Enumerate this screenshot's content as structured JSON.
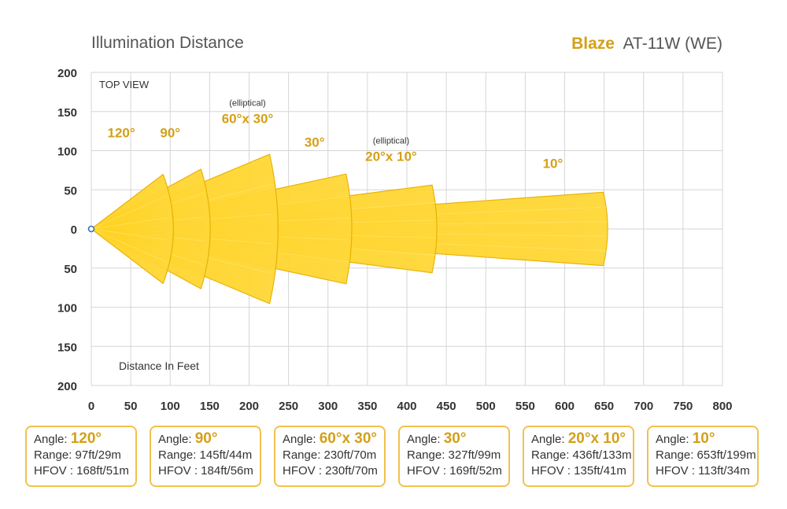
{
  "chart_data": {
    "type": "beam-pattern",
    "title": "Illumination Distance",
    "brand": "Blaze",
    "model": "AT-11W (WE)",
    "view_label": "TOP VIEW",
    "xlabel": "Distance In Feet",
    "xlim": [
      0,
      800
    ],
    "ylim": [
      -200,
      200
    ],
    "x_ticks": [
      "0",
      "50",
      "100",
      "150",
      "200",
      "250",
      "300",
      "350",
      "400",
      "450",
      "500",
      "550",
      "600",
      "650",
      "700",
      "750",
      "800"
    ],
    "y_ticks": [
      "200",
      "150",
      "100",
      "50",
      "0",
      "50",
      "100",
      "150",
      "200"
    ],
    "beams": [
      {
        "angle_label": "120°",
        "note": "",
        "range_ft": 97,
        "hfov_ft": 168,
        "label_pos": [
          38,
          117
        ]
      },
      {
        "angle_label": "90°",
        "note": "",
        "range_ft": 145,
        "hfov_ft": 184,
        "label_pos": [
          100,
          117
        ]
      },
      {
        "angle_label": "60°x 30°",
        "note": "(elliptical)",
        "range_ft": 230,
        "hfov_ft": 230,
        "label_pos": [
          198,
          135
        ]
      },
      {
        "angle_label": "30°",
        "note": "",
        "range_ft": 327,
        "hfov_ft": 169,
        "label_pos": [
          283,
          105
        ]
      },
      {
        "angle_label": "20°x 10°",
        "note": "(elliptical)",
        "range_ft": 436,
        "hfov_ft": 135,
        "label_pos": [
          380,
          87
        ]
      },
      {
        "angle_label": "10°",
        "note": "",
        "range_ft": 653,
        "hfov_ft": 113,
        "label_pos": [
          585,
          78
        ]
      }
    ],
    "colors": {
      "beam_fill": "#FFD21F",
      "beam_fill_light": "#FFE873",
      "beam_stroke": "#E9B000",
      "accent": "#D4A017",
      "grid": "#D6D6D6"
    }
  },
  "cards": [
    {
      "angle_prefix": "Angle:",
      "angle": "120°",
      "range": "Range: 97ft/29m",
      "hfov": "HFOV : 168ft/51m"
    },
    {
      "angle_prefix": "Angle:",
      "angle": "90°",
      "range": "Range: 145ft/44m",
      "hfov": "HFOV : 184ft/56m"
    },
    {
      "angle_prefix": "Angle:",
      "angle": "60°x 30°",
      "range": "Range: 230ft/70m",
      "hfov": "HFOV : 230ft/70m"
    },
    {
      "angle_prefix": "Angle:",
      "angle": "30°",
      "range": "Range: 327ft/99m",
      "hfov": "HFOV : 169ft/52m"
    },
    {
      "angle_prefix": "Angle:",
      "angle": "20°x 10°",
      "range": "Range: 436ft/133m",
      "hfov": "HFOV : 135ft/41m"
    },
    {
      "angle_prefix": "Angle:",
      "angle": "10°",
      "range": "Range: 653ft/199m",
      "hfov": "HFOV : 113ft/34m"
    }
  ]
}
